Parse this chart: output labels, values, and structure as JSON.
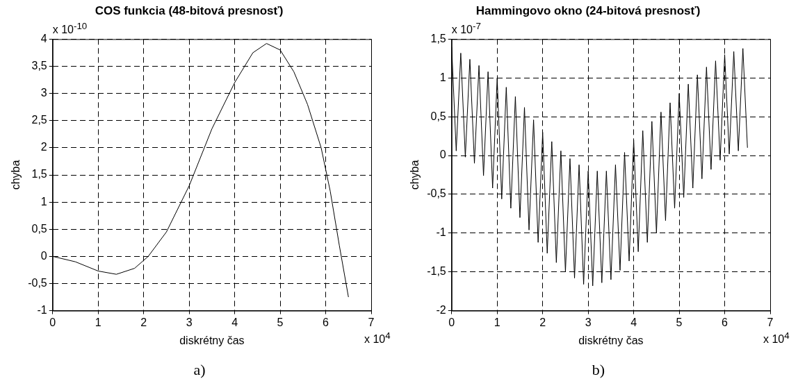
{
  "chart_data": [
    {
      "type": "line",
      "title": "COS funkcia (48-bitová presnosť)",
      "xlabel": "diskrétny čas",
      "ylabel": "chyba",
      "grid": true,
      "legend": false,
      "marker": "none",
      "line_style": "solid",
      "xlim": [
        0,
        7
      ],
      "xticks": [
        0,
        1,
        2,
        3,
        4,
        5,
        6,
        7
      ],
      "ylim": [
        -1,
        4
      ],
      "yticks": [
        -1,
        {
          "value": -0.5,
          "label": "-0,5"
        },
        0,
        {
          "value": 0.5,
          "label": "0,5"
        },
        1,
        {
          "value": 1.5,
          "label": "1,5"
        },
        2,
        {
          "value": 2.5,
          "label": "2,5"
        },
        3,
        {
          "value": 3.5,
          "label": "3,5"
        },
        4
      ],
      "x": [
        0,
        0.5,
        1,
        1.4,
        1.8,
        2.1,
        2.5,
        3,
        3.5,
        4,
        4.4,
        4.7,
        5,
        5.3,
        5.6,
        5.9,
        6.1,
        6.3,
        6.5
      ],
      "series": [
        {
          "color": "#000000",
          "values": [
            0,
            -0.1,
            -0.27,
            -0.33,
            -0.22,
            0,
            0.45,
            1.3,
            2.35,
            3.2,
            3.75,
            3.92,
            3.8,
            3.4,
            2.8,
            2.0,
            1.2,
            0.2,
            -0.75
          ]
        }
      ],
      "annotations": [
        "x 10$^{-10}$",
        "x 10$^{4}$",
        "a)"
      ]
    },
    {
      "type": "line",
      "title": "Hammingovo okno (24-bitová presnosť)",
      "xlabel": "diskrétny čas",
      "ylabel": "chyba",
      "grid": true,
      "legend": false,
      "marker": "none",
      "line_style": "solid",
      "xlim": [
        0,
        7
      ],
      "xticks": [
        0,
        1,
        2,
        3,
        4,
        5,
        6,
        7
      ],
      "ylim": [
        -2,
        1.5
      ],
      "yticks": [
        -2,
        {
          "value": -1.5,
          "label": "-1,5"
        },
        -1,
        {
          "value": -0.5,
          "label": "-0,5"
        },
        0,
        {
          "value": 0.5,
          "label": "0,5"
        },
        1,
        {
          "value": 1.5,
          "label": "1,5"
        }
      ],
      "x": [
        0,
        0.1,
        0.2,
        0.3,
        0.4,
        0.5,
        0.6,
        0.7,
        0.8,
        0.9,
        1,
        1.1,
        1.2,
        1.3,
        1.4,
        1.5,
        1.6,
        1.7,
        1.8,
        1.9,
        2,
        2.1,
        2.2,
        2.3,
        2.4,
        2.5,
        2.6,
        2.7,
        2.8,
        2.9,
        3,
        3.1,
        3.2,
        3.3,
        3.4,
        3.5,
        3.6,
        3.7,
        3.8,
        3.9,
        4,
        4.1,
        4.2,
        4.3,
        4.4,
        4.5,
        4.6,
        4.7,
        4.8,
        4.9,
        5,
        5.1,
        5.2,
        5.3,
        5.4,
        5.5,
        5.6,
        5.7,
        5.8,
        5.9,
        6,
        6.1,
        6.2,
        6.3,
        6.4,
        6.5
      ],
      "series": [
        {
          "color": "#000000",
          "values": [
            1.4,
            0.06,
            1.32,
            -0.02,
            1.24,
            -0.1,
            1.16,
            -0.26,
            1.08,
            -0.42,
            1.0,
            -0.56,
            0.88,
            -0.68,
            0.76,
            -0.8,
            0.62,
            -0.96,
            0.46,
            -1.12,
            0.3,
            -1.26,
            0.18,
            -1.38,
            0.06,
            -1.5,
            -0.04,
            -1.58,
            -0.12,
            -1.66,
            -0.2,
            -1.68,
            -0.2,
            -1.64,
            -0.2,
            -1.6,
            -0.12,
            -1.48,
            0.04,
            -1.36,
            0.2,
            -1.24,
            0.32,
            -1.12,
            0.44,
            -1.0,
            0.56,
            -0.84,
            0.68,
            -0.68,
            0.8,
            -0.54,
            0.92,
            -0.42,
            1.04,
            -0.3,
            1.14,
            -0.18,
            1.22,
            -0.06,
            1.3,
            0.02,
            1.34,
            0.06,
            1.38,
            0.1
          ]
        }
      ],
      "annotations": [
        "x 10$^{-7}$",
        "x 10$^{4}$",
        "b)"
      ]
    }
  ]
}
